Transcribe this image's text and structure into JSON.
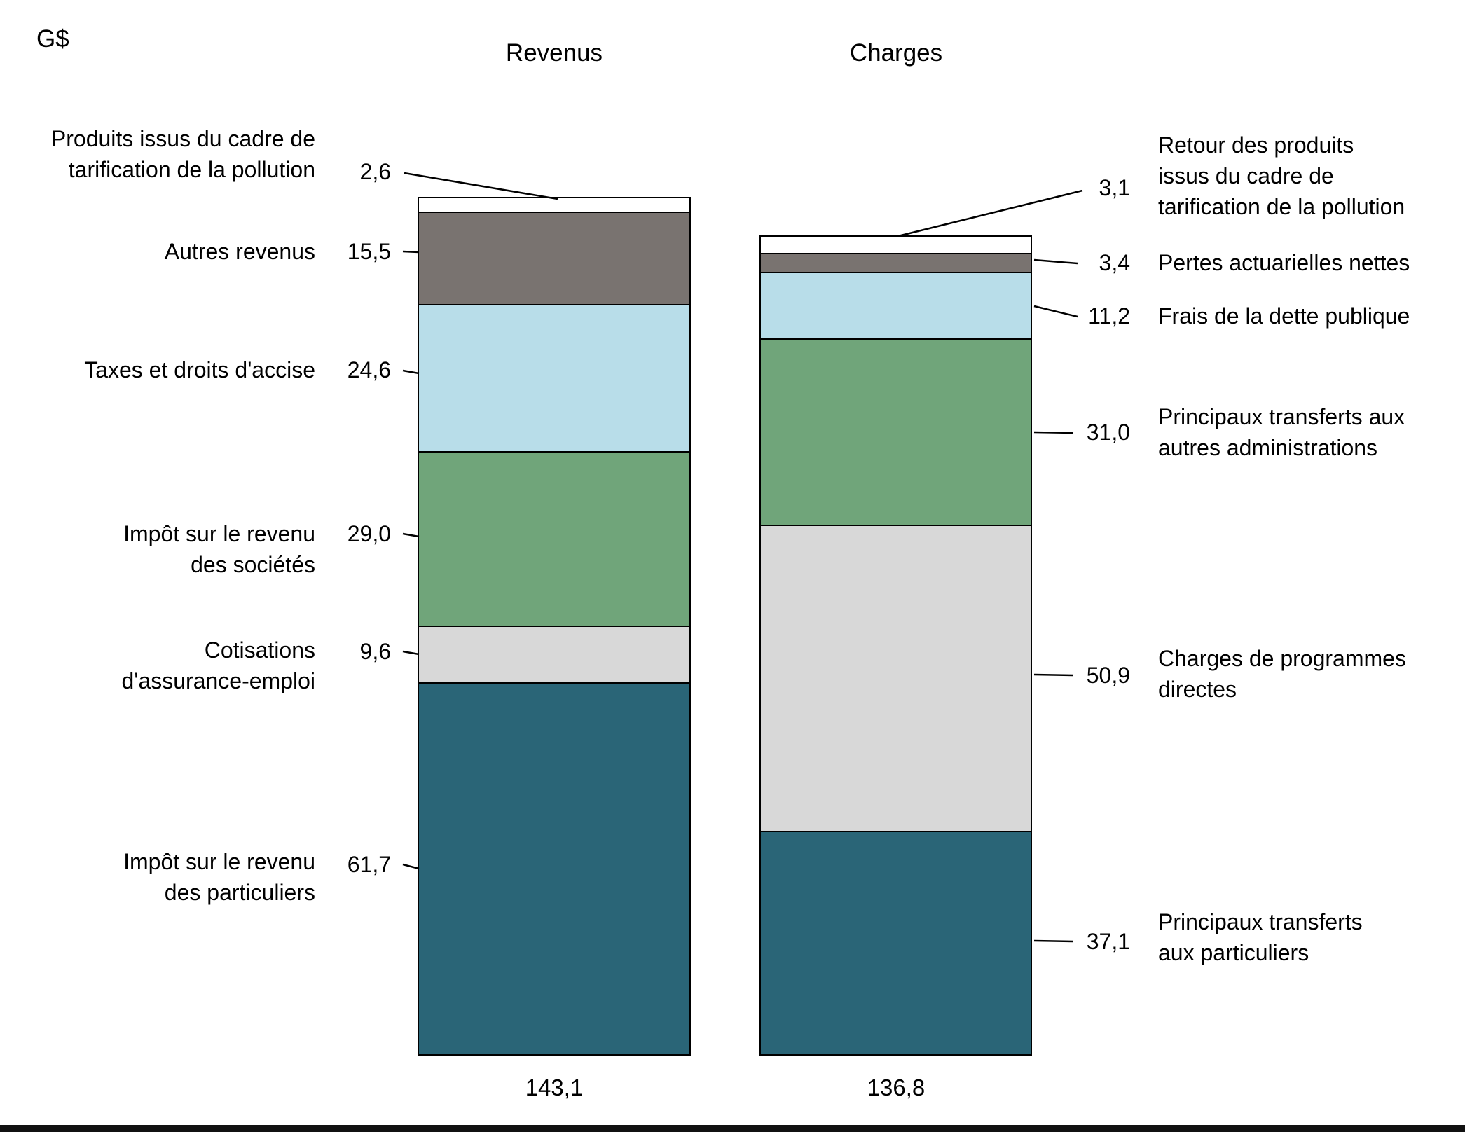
{
  "chart_data": {
    "type": "bar",
    "subtype": "stacked_column",
    "unit": "G$",
    "title": "",
    "columns": [
      {
        "label": "Revenus",
        "total": 143.1,
        "total_display": "143,1",
        "segments": [
          {
            "name": "Impôt sur le revenu des particuliers",
            "label_lines": [
              "Impôt sur le revenu",
              "des particuliers"
            ],
            "value": 61.7,
            "display": "61,7",
            "color": "#2a6577"
          },
          {
            "name": "Cotisations d'assurance-emploi",
            "label_lines": [
              "Cotisations",
              "d'assurance-emploi"
            ],
            "value": 9.6,
            "display": "9,6",
            "color": "#d8d8d8"
          },
          {
            "name": "Impôt sur le revenu des sociétés",
            "label_lines": [
              "Impôt sur le revenu",
              "des sociétés"
            ],
            "value": 29.0,
            "display": "29,0",
            "color": "#70a57a"
          },
          {
            "name": "Taxes et droits d'accise",
            "label_lines": [
              "Taxes et droits d'accise"
            ],
            "value": 24.6,
            "display": "24,6",
            "color": "#b8dde9"
          },
          {
            "name": "Autres revenus",
            "label_lines": [
              "Autres revenus"
            ],
            "value": 15.5,
            "display": "15,5",
            "color": "#797370"
          },
          {
            "name": "Produits issus du cadre de tarification de la pollution",
            "label_lines": [
              "Produits issus du cadre de",
              "tarification de la pollution"
            ],
            "value": 2.6,
            "display": "2,6",
            "color": "#ffffff"
          }
        ]
      },
      {
        "label": "Charges",
        "total": 136.8,
        "total_display": "136,8",
        "segments": [
          {
            "name": "Principaux transferts aux particuliers",
            "label_lines": [
              "Principaux transferts",
              "aux particuliers"
            ],
            "value": 37.1,
            "display": "37,1",
            "color": "#2a6577"
          },
          {
            "name": "Charges de programmes directes",
            "label_lines": [
              "Charges de programmes",
              "directes"
            ],
            "value": 50.9,
            "display": "50,9",
            "color": "#d8d8d8"
          },
          {
            "name": "Principaux transferts aux autres administrations",
            "label_lines": [
              "Principaux transferts aux",
              "autres administrations"
            ],
            "value": 31.0,
            "display": "31,0",
            "color": "#70a57a"
          },
          {
            "name": "Frais de la dette publique",
            "label_lines": [
              "Frais de la dette publique"
            ],
            "value": 11.2,
            "display": "11,2",
            "color": "#b8dde9"
          },
          {
            "name": "Pertes actuarielles nettes",
            "label_lines": [
              "Pertes actuarielles nettes"
            ],
            "value": 3.4,
            "display": "3,4",
            "color": "#797370"
          },
          {
            "name": "Retour des produits issus du cadre de tarification de la pollution",
            "label_lines": [
              "Retour des produits",
              "issus du cadre de",
              "tarification de la pollution"
            ],
            "value": 3.1,
            "display": "3,1",
            "color": "#ffffff"
          }
        ]
      }
    ]
  }
}
